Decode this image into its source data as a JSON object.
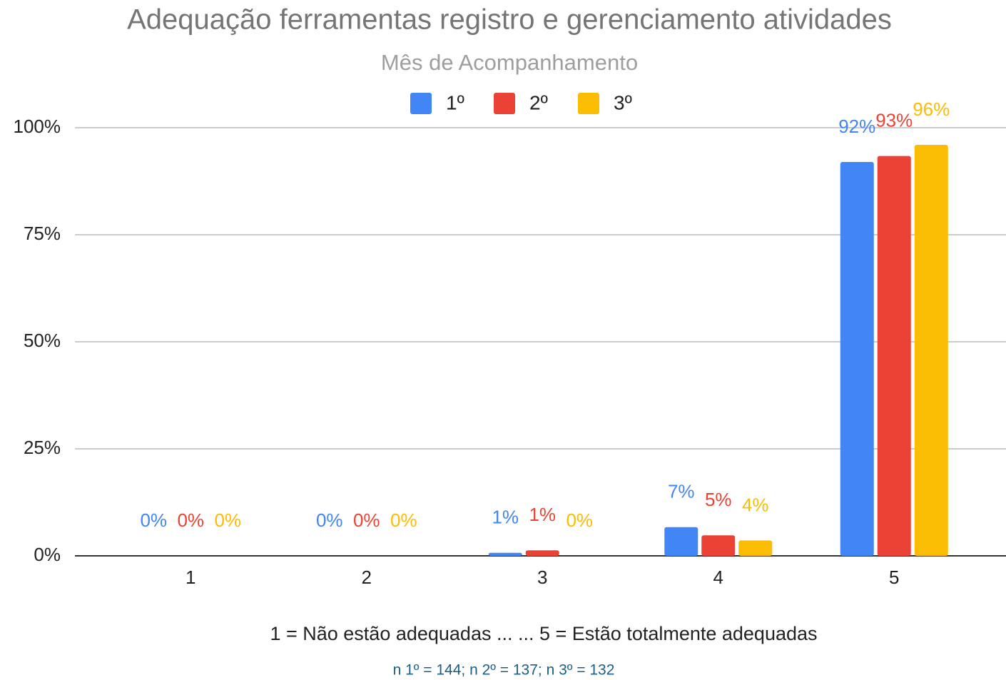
{
  "chart_data": {
    "type": "bar",
    "title": "Adequação ferramentas registro e gerenciamento atividades",
    "legend_title": "Mês de Acompanhamento",
    "x_label": "1 = Não estão adequadas ...  ... 5 = Estão totalmente adequadas",
    "note": "n 1º = 144; n 2º = 137; n 3º = 132",
    "categories": [
      "1",
      "2",
      "3",
      "4",
      "5"
    ],
    "series": [
      {
        "name": "1º",
        "color": "#4285f4",
        "values": [
          0,
          0,
          0.7,
          6.7,
          92
        ],
        "value_labels": [
          "0%",
          "0%",
          "1%",
          "7%",
          "92%"
        ]
      },
      {
        "name": "2º",
        "color": "#ea4335",
        "values": [
          0,
          0,
          1.3,
          4.8,
          93.4
        ],
        "value_labels": [
          "0%",
          "0%",
          "1%",
          "5%",
          "93%"
        ]
      },
      {
        "name": "3º",
        "color": "#fbbc04",
        "values": [
          0,
          0,
          0,
          3.6,
          96
        ],
        "value_labels": [
          "0%",
          "0%",
          "0%",
          "4%",
          "96%"
        ]
      }
    ],
    "ylim": [
      0,
      100
    ],
    "yticks": [
      {
        "value": 0,
        "label": "0%"
      },
      {
        "value": 25,
        "label": "25%"
      },
      {
        "value": 50,
        "label": "50%"
      },
      {
        "value": 75,
        "label": "75%"
      },
      {
        "value": 100,
        "label": "100%"
      }
    ],
    "grid": true,
    "legend": "top"
  }
}
